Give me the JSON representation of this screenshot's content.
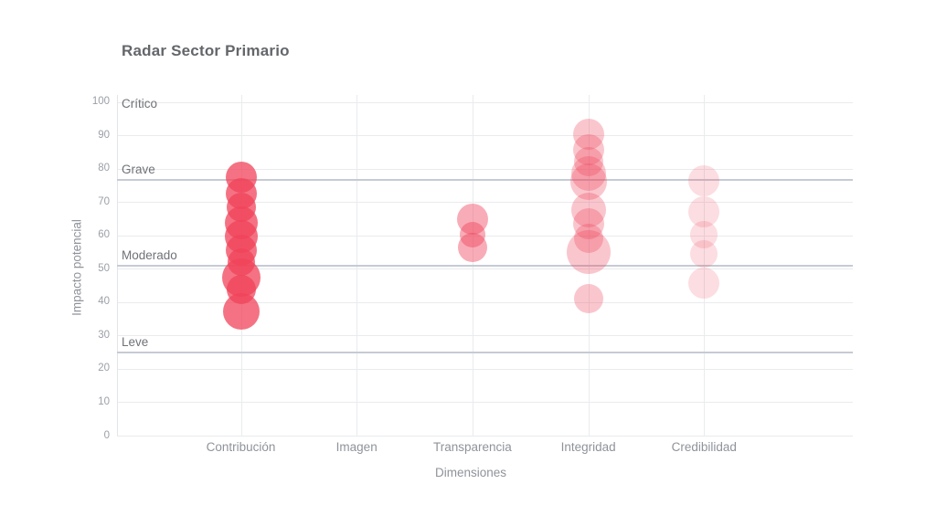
{
  "title": "Radar Sector Primario",
  "chart_data": {
    "type": "bubble",
    "title": "Radar Sector Primario",
    "xlabel": "Dimensiones",
    "ylabel": "Impacto potencial",
    "ylim": [
      0,
      100
    ],
    "ytick_step": 10,
    "grid": true,
    "legend": false,
    "categories": [
      "Contribución",
      "Imagen",
      "Transparencia",
      "Integridad",
      "Credibilidad"
    ],
    "bubble_base_color": "#f0435a",
    "grid_color": "#e9ebee",
    "threshold_line_color": "#c6cbd4",
    "thresholds": [
      {
        "label": "Crítico",
        "value": 100,
        "line": false
      },
      {
        "label": "Grave",
        "value": 76.5,
        "line": true
      },
      {
        "label": "Moderado",
        "value": 51,
        "line": true
      },
      {
        "label": "Leve",
        "value": 24.8,
        "line": true
      }
    ],
    "series": [
      {
        "name": "Contribución",
        "opacity": 0.75,
        "points": [
          {
            "y": 77.4,
            "r": 17
          },
          {
            "y": 72.4,
            "r": 17
          },
          {
            "y": 68.3,
            "r": 16
          },
          {
            "y": 63.7,
            "r": 18
          },
          {
            "y": 59.6,
            "r": 18
          },
          {
            "y": 55.5,
            "r": 17
          },
          {
            "y": 51.9,
            "r": 15
          },
          {
            "y": 47.3,
            "r": 21
          },
          {
            "y": 43.7,
            "r": 16
          },
          {
            "y": 37.2,
            "r": 20
          }
        ]
      },
      {
        "name": "Imagen",
        "opacity": 0.5,
        "points": []
      },
      {
        "name": "Transparencia",
        "opacity": 0.44,
        "points": [
          {
            "y": 64.8,
            "r": 17
          },
          {
            "y": 60.1,
            "r": 14
          },
          {
            "y": 56.3,
            "r": 16
          }
        ]
      },
      {
        "name": "Integridad",
        "opacity": 0.3,
        "points": [
          {
            "y": 90.2,
            "r": 17
          },
          {
            "y": 85.5,
            "r": 17
          },
          {
            "y": 82.0,
            "r": 16
          },
          {
            "y": 78.5,
            "r": 19
          },
          {
            "y": 76.0,
            "r": 20
          },
          {
            "y": 67.5,
            "r": 19
          },
          {
            "y": 63.5,
            "r": 17
          },
          {
            "y": 59.0,
            "r": 16
          },
          {
            "y": 55.0,
            "r": 24
          },
          {
            "y": 41.0,
            "r": 16
          }
        ]
      },
      {
        "name": "Credibilidad",
        "opacity": 0.18,
        "points": [
          {
            "y": 76.2,
            "r": 17
          },
          {
            "y": 67.0,
            "r": 17
          },
          {
            "y": 60.1,
            "r": 15
          },
          {
            "y": 54.4,
            "r": 15
          },
          {
            "y": 45.6,
            "r": 17
          }
        ]
      }
    ]
  }
}
